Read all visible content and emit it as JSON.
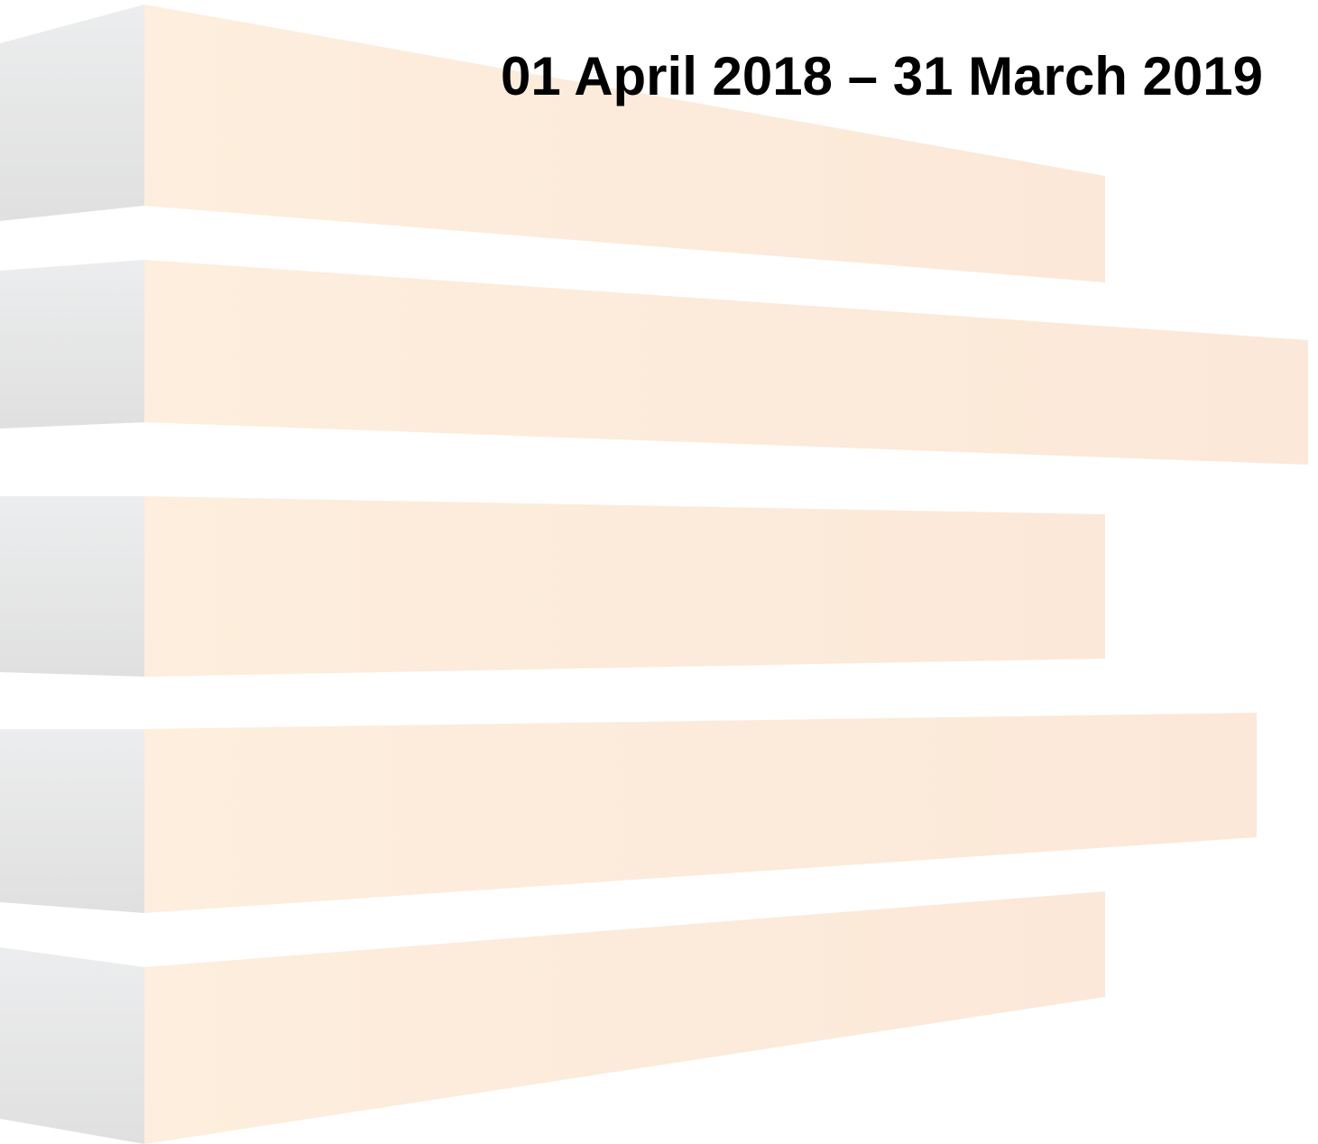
{
  "header": {
    "title": "01 April 2018 – 31 March 2019"
  }
}
